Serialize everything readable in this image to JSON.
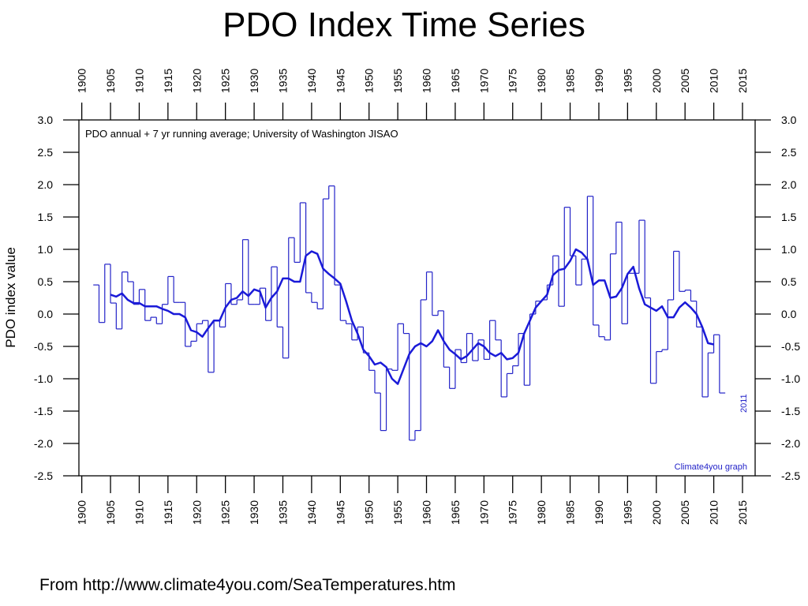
{
  "chart_data": {
    "type": "line",
    "title": "PDO Index Time Series",
    "ylabel": "PDO index value",
    "annotations": [
      "PDO annual + 7 yr running average; University of Washington JISAO",
      "Climate4you graph",
      "2011"
    ],
    "source": "From http://www.climate4you.com/SeaTemperatures.htm",
    "xlim": [
      1899.5,
      2017.2
    ],
    "ylim": [
      -2.5,
      3.0
    ],
    "xticks": [
      1900,
      1905,
      1910,
      1915,
      1920,
      1925,
      1930,
      1935,
      1940,
      1945,
      1950,
      1955,
      1960,
      1965,
      1970,
      1975,
      1980,
      1985,
      1990,
      1995,
      2000,
      2005,
      2010,
      2015
    ],
    "yticks": [
      {
        "value": 3.0,
        "label": "3.0"
      },
      2.5,
      {
        "value": 2.0,
        "label": "2.0"
      },
      1.5,
      {
        "value": 1.0,
        "label": "1.0"
      },
      0.5,
      {
        "value": 0,
        "label": "0.0"
      },
      -0.5,
      {
        "value": -1.0,
        "label": "-1.0"
      },
      -1.5,
      {
        "value": -2.0,
        "label": "-2.0"
      },
      -2.5
    ],
    "series": [
      {
        "color": "#2323c8",
        "style": "step",
        "x": [
          1902,
          1903,
          1904,
          1905,
          1906,
          1907,
          1908,
          1909,
          1910,
          1911,
          1912,
          1913,
          1914,
          1915,
          1916,
          1917,
          1918,
          1919,
          1920,
          1921,
          1922,
          1923,
          1924,
          1925,
          1926,
          1927,
          1928,
          1929,
          1930,
          1931,
          1932,
          1933,
          1934,
          1935,
          1936,
          1937,
          1938,
          1939,
          1940,
          1941,
          1942,
          1943,
          1944,
          1945,
          1946,
          1947,
          1948,
          1949,
          1950,
          1951,
          1952,
          1953,
          1954,
          1955,
          1956,
          1957,
          1958,
          1959,
          1960,
          1961,
          1962,
          1963,
          1964,
          1965,
          1966,
          1967,
          1968,
          1969,
          1970,
          1971,
          1972,
          1973,
          1974,
          1975,
          1976,
          1977,
          1978,
          1979,
          1980,
          1981,
          1982,
          1983,
          1984,
          1985,
          1986,
          1987,
          1988,
          1989,
          1990,
          1991,
          1992,
          1993,
          1994,
          1995,
          1996,
          1997,
          1998,
          1999,
          2000,
          2001,
          2002,
          2003,
          2004,
          2005,
          2006,
          2007,
          2008,
          2009,
          2010,
          2011
        ],
        "values": [
          0.45,
          -0.13,
          0.77,
          0.17,
          -0.23,
          0.65,
          0.5,
          0.15,
          0.38,
          -0.1,
          -0.05,
          -0.15,
          0.15,
          0.58,
          0.18,
          0.18,
          -0.5,
          -0.42,
          -0.15,
          -0.1,
          -0.9,
          -0.1,
          -0.2,
          0.47,
          0.15,
          0.22,
          1.15,
          0.15,
          0.15,
          0.4,
          -0.1,
          0.73,
          -0.2,
          -0.68,
          1.18,
          0.8,
          1.72,
          0.33,
          0.18,
          0.08,
          1.78,
          1.98,
          0.45,
          -0.1,
          -0.15,
          -0.4,
          -0.2,
          -0.6,
          -0.87,
          -1.22,
          -1.8,
          -0.85,
          -0.87,
          -0.15,
          -0.3,
          -1.95,
          -1.8,
          0.22,
          0.65,
          -0.02,
          0.05,
          -0.82,
          -1.15,
          -0.55,
          -0.75,
          -0.3,
          -0.72,
          -0.4,
          -0.7,
          -0.1,
          -0.4,
          -1.28,
          -0.92,
          -0.8,
          -0.3,
          -1.1,
          0.0,
          0.2,
          0.22,
          0.45,
          0.9,
          0.12,
          1.65,
          0.9,
          0.45,
          0.85,
          1.82,
          -0.17,
          -0.35,
          -0.4,
          0.93,
          1.42,
          -0.15,
          0.63,
          0.63,
          1.45,
          0.25,
          -1.07,
          -0.58,
          -0.55,
          0.22,
          0.97,
          0.35,
          0.37,
          0.2,
          -0.2,
          -1.28,
          -0.6,
          -0.32,
          -1.22
        ]
      },
      {
        "color": "#1a1ad8",
        "style": "line",
        "x": [
          1905,
          1906,
          1907,
          1908,
          1909,
          1910,
          1911,
          1912,
          1913,
          1914,
          1915,
          1916,
          1917,
          1918,
          1919,
          1920,
          1921,
          1922,
          1923,
          1924,
          1925,
          1926,
          1927,
          1928,
          1929,
          1930,
          1931,
          1932,
          1933,
          1934,
          1935,
          1936,
          1937,
          1938,
          1939,
          1940,
          1941,
          1942,
          1943,
          1944,
          1945,
          1946,
          1947,
          1948,
          1949,
          1950,
          1951,
          1952,
          1953,
          1954,
          1955,
          1956,
          1957,
          1958,
          1959,
          1960,
          1961,
          1962,
          1963,
          1964,
          1965,
          1966,
          1967,
          1968,
          1969,
          1970,
          1971,
          1972,
          1973,
          1974,
          1975,
          1976,
          1977,
          1978,
          1979,
          1980,
          1981,
          1982,
          1983,
          1984,
          1985,
          1986,
          1987,
          1988,
          1989,
          1990,
          1991,
          1992,
          1993,
          1994,
          1995,
          1996,
          1997,
          1998,
          1999,
          2000,
          2001,
          2002,
          2003,
          2004,
          2005,
          2006,
          2007,
          2008,
          2009,
          2010
        ],
        "values": [
          0.3,
          0.27,
          0.32,
          0.22,
          0.17,
          0.17,
          0.12,
          0.12,
          0.12,
          0.08,
          0.05,
          0.0,
          0.0,
          -0.05,
          -0.25,
          -0.28,
          -0.35,
          -0.22,
          -0.1,
          -0.1,
          0.1,
          0.22,
          0.25,
          0.35,
          0.28,
          0.38,
          0.35,
          0.1,
          0.25,
          0.35,
          0.55,
          0.55,
          0.5,
          0.5,
          0.9,
          0.97,
          0.93,
          0.7,
          0.62,
          0.55,
          0.47,
          0.2,
          -0.1,
          -0.3,
          -0.55,
          -0.65,
          -0.78,
          -0.75,
          -0.82,
          -1.0,
          -1.08,
          -0.85,
          -0.62,
          -0.5,
          -0.45,
          -0.5,
          -0.42,
          -0.25,
          -0.42,
          -0.55,
          -0.62,
          -0.7,
          -0.65,
          -0.55,
          -0.45,
          -0.5,
          -0.6,
          -0.65,
          -0.6,
          -0.7,
          -0.68,
          -0.6,
          -0.3,
          -0.1,
          0.1,
          0.2,
          0.3,
          0.6,
          0.68,
          0.7,
          0.82,
          1.0,
          0.95,
          0.85,
          0.45,
          0.52,
          0.52,
          0.25,
          0.27,
          0.4,
          0.62,
          0.73,
          0.4,
          0.15,
          0.1,
          0.05,
          0.12,
          -0.05,
          -0.05,
          0.1,
          0.18,
          0.1,
          0.0,
          -0.2,
          -0.45,
          -0.47
        ]
      }
    ]
  }
}
